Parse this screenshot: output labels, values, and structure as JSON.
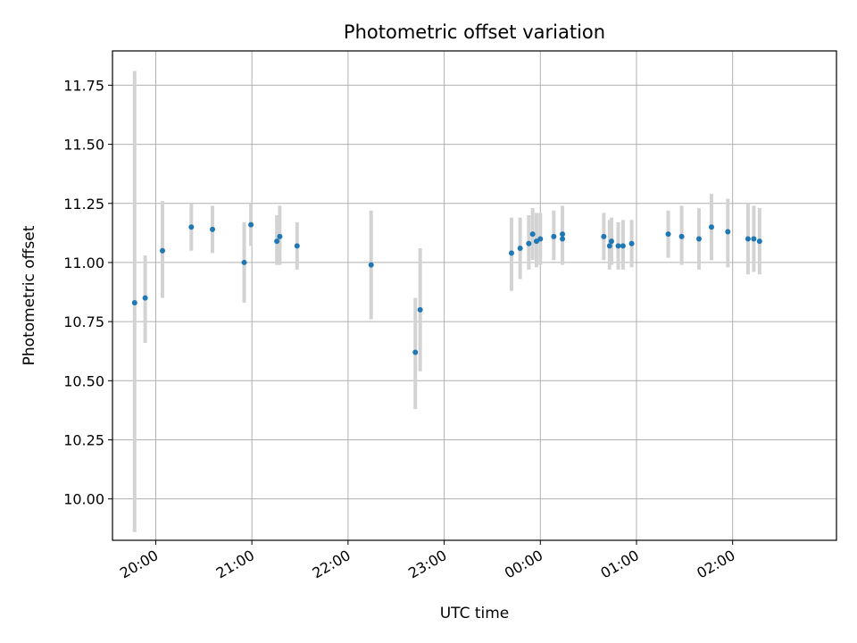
{
  "chart_data": {
    "type": "scatter",
    "title": "Photometric offset variation",
    "xlabel": "UTC time",
    "ylabel": "Photometric offset",
    "x_unit": "hours (UTC, continuing past midnight)",
    "xlim": [
      19.55,
      27.08
    ],
    "ylim": [
      9.825,
      11.895
    ],
    "grid": true,
    "colors": {
      "points": "#1f77b4",
      "errorbars": "#d3d3d3",
      "grid": "#b0b0b0"
    },
    "x_ticks": [
      {
        "value": 20,
        "label": "20:00"
      },
      {
        "value": 21,
        "label": "21:00"
      },
      {
        "value": 22,
        "label": "22:00"
      },
      {
        "value": 23,
        "label": "23:00"
      },
      {
        "value": 24,
        "label": "00:00"
      },
      {
        "value": 25,
        "label": "01:00"
      },
      {
        "value": 26,
        "label": "02:00"
      }
    ],
    "y_ticks": [
      {
        "value": 10.0,
        "label": "10.00"
      },
      {
        "value": 10.25,
        "label": "10.25"
      },
      {
        "value": 10.5,
        "label": "10.50"
      },
      {
        "value": 10.75,
        "label": "10.75"
      },
      {
        "value": 11.0,
        "label": "11.00"
      },
      {
        "value": 11.25,
        "label": "11.25"
      },
      {
        "value": 11.5,
        "label": "11.50"
      },
      {
        "value": 11.75,
        "label": "11.75"
      }
    ],
    "points": [
      {
        "x": 19.78,
        "y": 10.83,
        "lo": 9.86,
        "hi": 11.81
      },
      {
        "x": 19.89,
        "y": 10.85,
        "lo": 10.66,
        "hi": 11.03
      },
      {
        "x": 20.07,
        "y": 11.05,
        "lo": 10.85,
        "hi": 11.26
      },
      {
        "x": 20.37,
        "y": 11.15,
        "lo": 11.05,
        "hi": 11.25
      },
      {
        "x": 20.59,
        "y": 11.14,
        "lo": 11.04,
        "hi": 11.24
      },
      {
        "x": 20.92,
        "y": 11.0,
        "lo": 10.83,
        "hi": 11.17
      },
      {
        "x": 20.99,
        "y": 11.16,
        "lo": 11.07,
        "hi": 11.25
      },
      {
        "x": 21.26,
        "y": 11.09,
        "lo": 10.99,
        "hi": 11.2
      },
      {
        "x": 21.29,
        "y": 11.11,
        "lo": 10.99,
        "hi": 11.24
      },
      {
        "x": 21.47,
        "y": 11.07,
        "lo": 10.97,
        "hi": 11.17
      },
      {
        "x": 22.24,
        "y": 10.99,
        "lo": 10.76,
        "hi": 11.22
      },
      {
        "x": 22.7,
        "y": 10.62,
        "lo": 10.38,
        "hi": 10.85
      },
      {
        "x": 22.75,
        "y": 10.8,
        "lo": 10.54,
        "hi": 11.06
      },
      {
        "x": 23.7,
        "y": 11.04,
        "lo": 10.88,
        "hi": 11.19
      },
      {
        "x": 23.79,
        "y": 11.06,
        "lo": 10.93,
        "hi": 11.19
      },
      {
        "x": 23.88,
        "y": 11.08,
        "lo": 10.97,
        "hi": 11.2
      },
      {
        "x": 23.92,
        "y": 11.12,
        "lo": 11.01,
        "hi": 11.23
      },
      {
        "x": 23.96,
        "y": 11.09,
        "lo": 10.98,
        "hi": 11.21
      },
      {
        "x": 24.0,
        "y": 11.1,
        "lo": 10.99,
        "hi": 11.21
      },
      {
        "x": 24.14,
        "y": 11.11,
        "lo": 11.01,
        "hi": 11.22
      },
      {
        "x": 24.23,
        "y": 11.12,
        "lo": 11.0,
        "hi": 11.24
      },
      {
        "x": 24.23,
        "y": 11.1,
        "lo": 10.99,
        "hi": 11.21
      },
      {
        "x": 24.66,
        "y": 11.11,
        "lo": 11.01,
        "hi": 11.21
      },
      {
        "x": 24.72,
        "y": 11.07,
        "lo": 10.97,
        "hi": 11.18
      },
      {
        "x": 24.74,
        "y": 11.09,
        "lo": 10.99,
        "hi": 11.19
      },
      {
        "x": 24.81,
        "y": 11.07,
        "lo": 10.97,
        "hi": 11.17
      },
      {
        "x": 24.86,
        "y": 11.07,
        "lo": 10.97,
        "hi": 11.18
      },
      {
        "x": 24.95,
        "y": 11.08,
        "lo": 10.98,
        "hi": 11.18
      },
      {
        "x": 25.33,
        "y": 11.12,
        "lo": 11.02,
        "hi": 11.22
      },
      {
        "x": 25.47,
        "y": 11.11,
        "lo": 10.99,
        "hi": 11.24
      },
      {
        "x": 25.65,
        "y": 11.1,
        "lo": 10.97,
        "hi": 11.23
      },
      {
        "x": 25.78,
        "y": 11.15,
        "lo": 11.01,
        "hi": 11.29
      },
      {
        "x": 25.95,
        "y": 11.13,
        "lo": 10.98,
        "hi": 11.27
      },
      {
        "x": 26.16,
        "y": 11.1,
        "lo": 10.95,
        "hi": 11.25
      },
      {
        "x": 26.22,
        "y": 11.1,
        "lo": 10.96,
        "hi": 11.24
      },
      {
        "x": 26.28,
        "y": 11.09,
        "lo": 10.95,
        "hi": 11.23
      }
    ]
  }
}
